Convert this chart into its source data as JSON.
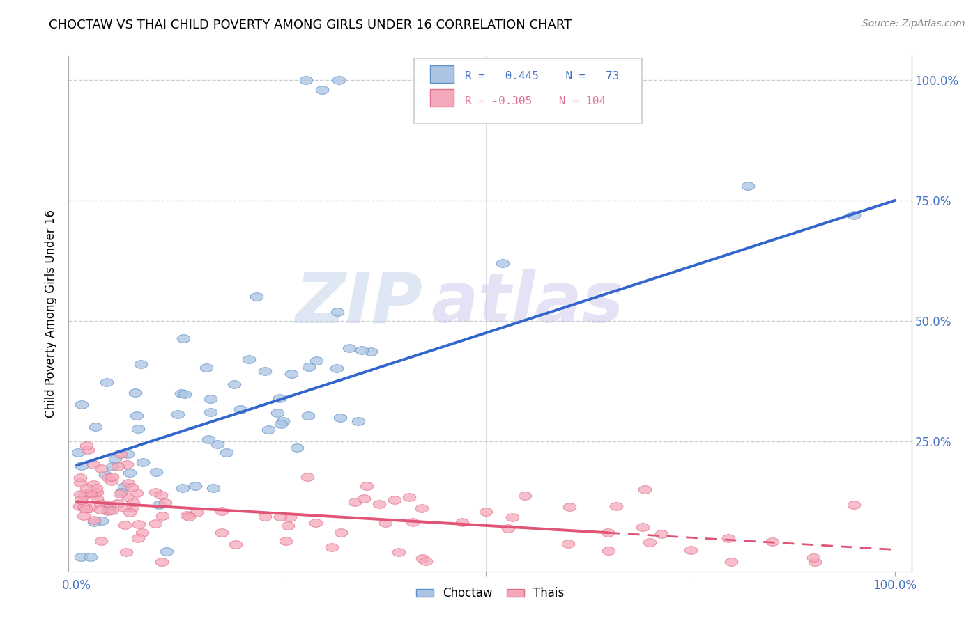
{
  "title": "CHOCTAW VS THAI CHILD POVERTY AMONG GIRLS UNDER 16 CORRELATION CHART",
  "source": "Source: ZipAtlas.com",
  "ylabel": "Child Poverty Among Girls Under 16",
  "choctaw_R": 0.445,
  "choctaw_N": 73,
  "thai_R": -0.305,
  "thai_N": 104,
  "choctaw_color": "#aac4e2",
  "thai_color": "#f5a8bb",
  "choctaw_edge_color": "#5b8fc9",
  "thai_edge_color": "#e0708a",
  "choctaw_line_color": "#3366CC",
  "thai_line_color": "#E05575",
  "watermark_text": "ZIPatlas",
  "watermark_color": "#c8d8f0",
  "watermark2_text": "atlas",
  "watermark2_color": "#d0c8e8",
  "legend_R1_color": "#4472C4",
  "legend_R2_color": "#E07090",
  "legend_N1_color": "#4472C4",
  "legend_N2_color": "#4472C4",
  "tick_color": "#4472C4",
  "title_color": "#000000",
  "source_color": "#888888"
}
